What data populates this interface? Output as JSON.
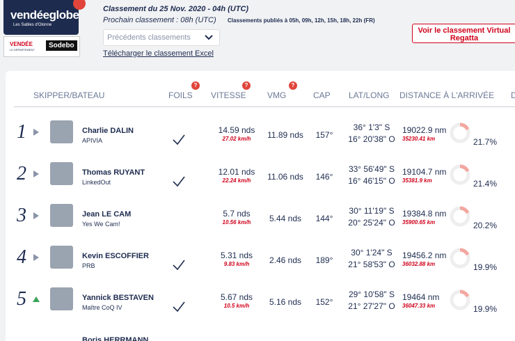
{
  "header": {
    "logo": "vendéeglobe",
    "logo_sub": "Les Sables d'Olonne",
    "sponsor_1": "VENDÉE",
    "sponsor_1_sub": "LE DÉPARTEMENT",
    "sponsor_2": "Sodebo",
    "title": "Classement du 25 Nov. 2020 - 04h (UTC)",
    "next": "Prochain classement : 08h (UTC)",
    "published": "Classements publiés à 05h, 09h, 12h, 15h, 18h, 22h (FR)",
    "dropdown": "Précédents classements",
    "download": "Télécharger le classement Excel",
    "button": "Voir le classement Virtual Regatta"
  },
  "table": {
    "columns": [
      "SKIPPER/BATEAU",
      "FOILS",
      "VITESSE",
      "VMG",
      "CAP",
      "LAT/LONG",
      "DISTANCE À L'ARRIVÉE",
      "D"
    ],
    "help": "?",
    "rows": [
      {
        "rank": "1",
        "trend": "same",
        "skipper": "Charlie DALIN",
        "boat": "APIVIA",
        "foils": true,
        "speed": "14.59 nds",
        "speed_kmh": "27.02 km/h",
        "vmg": "11.89 nds",
        "cap": "157°",
        "lat": "36° 1'3\" S",
        "long": "16° 20'38\" O",
        "distance": "19022.9 nm",
        "distance_km": "35230.41 km",
        "pct": "21.7%"
      },
      {
        "rank": "2",
        "trend": "same",
        "skipper": "Thomas RUYANT",
        "boat": "LinkedOut",
        "foils": true,
        "speed": "12.01 nds",
        "speed_kmh": "22.24 km/h",
        "vmg": "11.06 nds",
        "cap": "146°",
        "lat": "33° 56'49\" S",
        "long": "16° 46'15\" O",
        "distance": "19104.7 nm",
        "distance_km": "35381.9 km",
        "pct": "21.4%"
      },
      {
        "rank": "3",
        "trend": "same",
        "skipper": "Jean LE CAM",
        "boat": "Yes We Cam!",
        "foils": false,
        "speed": "5.7 nds",
        "speed_kmh": "10.56 km/h",
        "vmg": "5.44 nds",
        "cap": "144°",
        "lat": "30° 11'19\" S",
        "long": "20° 25'24\" O",
        "distance": "19384.8 nm",
        "distance_km": "35900.65 km",
        "pct": "20.2%"
      },
      {
        "rank": "4",
        "trend": "same",
        "skipper": "Kevin ESCOFFIER",
        "boat": "PRB",
        "foils": true,
        "speed": "5.31 nds",
        "speed_kmh": "9.83 km/h",
        "vmg": "2.46 nds",
        "cap": "189°",
        "lat": "30° 1'24\" S",
        "long": "21° 58'53\" O",
        "distance": "19456.2 nm",
        "distance_km": "36032.88 km",
        "pct": "19.9%"
      },
      {
        "rank": "5",
        "trend": "up",
        "skipper": "Yannick BESTAVEN",
        "boat": "Maître CoQ IV",
        "foils": true,
        "speed": "5.67 nds",
        "speed_kmh": "10.5 km/h",
        "vmg": "5.16 nds",
        "cap": "152°",
        "lat": "29° 10'58\" S",
        "long": "21° 27'27\" O",
        "distance": "19464 nm",
        "distance_km": "36047.33 km",
        "pct": "19.9%"
      }
    ],
    "partial_row": {
      "skipper": "Boris HERRMANN"
    }
  }
}
